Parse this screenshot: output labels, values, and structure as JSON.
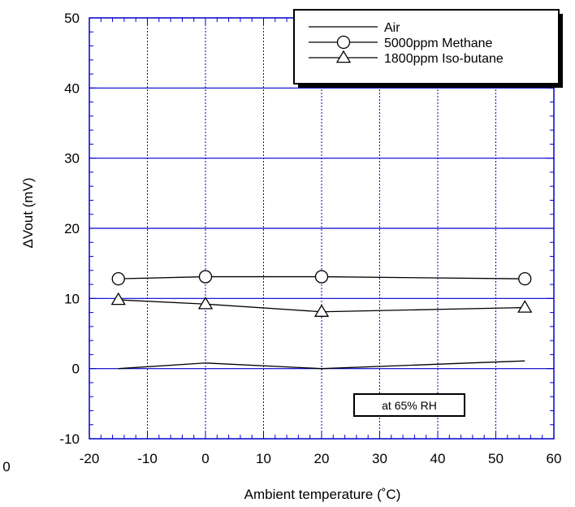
{
  "chart_data": {
    "type": "line",
    "title": "",
    "xlabel": "Ambient temperature (˚C)",
    "ylabel": "ΔVout (mV)",
    "xlim": [
      -20,
      60
    ],
    "ylim": [
      -10,
      50
    ],
    "xticks": [
      -20,
      -10,
      0,
      10,
      20,
      30,
      40,
      50,
      60
    ],
    "yticks": [
      -10,
      0,
      10,
      20,
      30,
      40,
      50
    ],
    "stray_tick_label": "0",
    "grid": true,
    "legend_position": "top-right",
    "annotation": "at 65% RH",
    "series": [
      {
        "name": "Air",
        "marker": "none",
        "x": [
          -15,
          0,
          20,
          55
        ],
        "y": [
          0,
          0.8,
          0,
          1.1
        ]
      },
      {
        "name": "5000ppm Methane",
        "marker": "circle",
        "x": [
          -15,
          0,
          20,
          55
        ],
        "y": [
          12.8,
          13.1,
          13.1,
          12.8
        ]
      },
      {
        "name": "1800ppm Iso-butane",
        "marker": "triangle",
        "x": [
          -15,
          0,
          20,
          55
        ],
        "y": [
          9.8,
          9.2,
          8.1,
          8.7
        ]
      }
    ],
    "colors": {
      "grid": "#0000cc",
      "frame": "#0000cc",
      "line": "#000000"
    }
  }
}
